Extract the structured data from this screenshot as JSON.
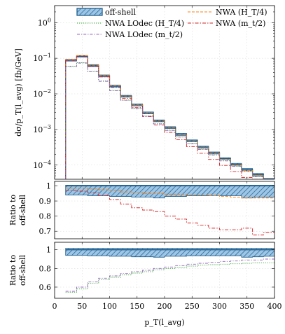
{
  "chart_data": {
    "type": "line",
    "x_edges": [
      20,
      40,
      60,
      80,
      100,
      120,
      140,
      160,
      180,
      200,
      220,
      240,
      260,
      280,
      300,
      320,
      340,
      360,
      380,
      400
    ],
    "xlabel": "p_T(l_avg)",
    "xlim": [
      0,
      400
    ],
    "x_ticks": [
      0,
      50,
      100,
      150,
      200,
      250,
      300,
      350,
      400
    ],
    "legend": {
      "placement": "top",
      "entries": [
        {
          "key": "offshell",
          "label": "off-shell"
        },
        {
          "key": "nwa_ht4",
          "label": "NWA (H_T/4)"
        },
        {
          "key": "nwa_lodec_ht4",
          "label": "NWA LOdec (H_T/4)"
        },
        {
          "key": "nwa_mt2",
          "label": "NWA (m_t/2)"
        },
        {
          "key": "nwa_lodec_mt2",
          "label": "NWA LOdec (m_t/2)"
        }
      ]
    },
    "colors": {
      "offshell_line": "#1f5d8c",
      "offshell_fill": "#9dc6e6",
      "nwa_ht4": "#ff7f0e",
      "nwa_lodec_ht4": "#2ca02c",
      "nwa_mt2": "#d62728",
      "nwa_lodec_mt2": "#9467bd"
    },
    "panels": [
      {
        "id": "main",
        "ylabel": "dσ/p_T(l_avg) [fb/GeV]",
        "yscale": "log",
        "ylim": [
          4e-05,
          3
        ],
        "y_ticks": [
          {
            "v": 0.0001,
            "base": "10",
            "exp": "−4"
          },
          {
            "v": 0.001,
            "base": "10",
            "exp": "−3"
          },
          {
            "v": 0.01,
            "base": "10",
            "exp": "−2"
          },
          {
            "v": 0.1,
            "base": "10",
            "exp": "−1"
          },
          {
            "v": 1,
            "base": "10",
            "exp": "0"
          }
        ],
        "series": [
          {
            "key": "offshell",
            "band": true,
            "values": [
              0.088,
              0.113,
              0.062,
              0.032,
              0.0165,
              0.0086,
              0.0049,
              0.0029,
              0.00175,
              0.00113,
              0.00073,
              0.00048,
              0.00032,
              0.00022,
              0.000152,
              0.000105,
              7.5e-05,
              5.4e-05,
              3.9e-05
            ],
            "band_lo": [
              0.083,
              0.107,
              0.058,
              0.03,
              0.0156,
              0.0081,
              0.0046,
              0.00275,
              0.00165,
              0.00106,
              0.00068,
              0.00045,
              0.0003,
              0.000206,
              0.000143,
              9.8e-05,
              7e-05,
              5e-05,
              3.6e-05
            ],
            "band_hi": [
              0.093,
              0.119,
              0.066,
              0.034,
              0.0175,
              0.0091,
              0.0052,
              0.0031,
              0.00185,
              0.0012,
              0.00078,
              0.00051,
              0.00034,
              0.000234,
              0.000161,
              0.000112,
              8e-05,
              5.8e-05,
              4.2e-05
            ]
          },
          {
            "key": "nwa_ht4",
            "values": [
              0.092,
              0.118,
              0.064,
              0.033,
              0.0168,
              0.0087,
              0.0049,
              0.0029,
              0.00172,
              0.0011,
              0.00071,
              0.00046,
              0.000305,
              0.00021,
              0.000143,
              9.9e-05,
              7e-05,
              5.1e-05,
              3.6e-05
            ]
          },
          {
            "key": "nwa_mt2",
            "values": [
              0.087,
              0.11,
              0.059,
              0.03,
              0.015,
              0.0075,
              0.0041,
              0.0023,
              0.00133,
              0.00083,
              0.00052,
              0.00033,
              0.000214,
              0.000144,
              9.8e-05,
              6.6e-05,
              4.5e-05,
              3.2e-05,
              2.3e-05
            ]
          },
          {
            "key": "nwa_lodec_ht4",
            "values": [
              0.06,
              0.075,
              0.043,
              0.023,
              0.0125,
              0.0067,
              0.0039,
              0.0024,
              0.00145,
              0.00095,
              0.00062,
              0.00041,
              0.00028,
              0.000193,
              0.000133,
              9.3e-05,
              6.7e-05,
              4.8e-05,
              3.4e-05
            ]
          },
          {
            "key": "nwa_lodec_mt2",
            "values": [
              0.058,
              0.073,
              0.042,
              0.0225,
              0.0123,
              0.0066,
              0.0038,
              0.00235,
              0.00143,
              0.00094,
              0.00061,
              0.0004,
              0.000275,
              0.00019,
              0.000131,
              9.2e-05,
              6.6e-05,
              4.7e-05,
              3.4e-05
            ]
          }
        ]
      },
      {
        "id": "ratio1",
        "ylabel_lines": [
          "Ratio to",
          "off-shell"
        ],
        "yscale": "linear",
        "ylim": [
          0.65,
          1.03
        ],
        "y_ticks": [
          {
            "v": 0.7,
            "label": "0.7"
          },
          {
            "v": 0.8,
            "label": "0.8"
          },
          {
            "v": 0.9,
            "label": "0.9"
          },
          {
            "v": 1,
            "label": "1"
          }
        ],
        "series": [
          {
            "key": "offshell",
            "band": true,
            "values": [
              1,
              1,
              1,
              1,
              1,
              1,
              1,
              1,
              1,
              1,
              1,
              1,
              1,
              1,
              1,
              1,
              1,
              1,
              1
            ],
            "band_lo": [
              0.94,
              0.94,
              0.935,
              0.935,
              0.93,
              0.93,
              0.925,
              0.925,
              0.92,
              0.93,
              0.93,
              0.935,
              0.935,
              0.935,
              0.935,
              0.935,
              0.92,
              0.925,
              0.925
            ],
            "band_hi": [
              1.005,
              1.005,
              1.005,
              1.005,
              1.005,
              1.005,
              1.005,
              1.005,
              1.005,
              1.005,
              1.005,
              1.005,
              1.005,
              1.005,
              1.005,
              1.005,
              1.005,
              1.005,
              1.005
            ]
          },
          {
            "key": "nwa_ht4",
            "values": [
              0.985,
              0.985,
              0.98,
              0.975,
              0.97,
              0.96,
              0.955,
              0.95,
              0.95,
              0.945,
              0.945,
              0.94,
              0.94,
              0.935,
              0.93,
              0.925,
              0.92,
              0.92,
              0.92
            ]
          },
          {
            "key": "nwa_mt2",
            "values": [
              0.97,
              0.965,
              0.955,
              0.935,
              0.91,
              0.88,
              0.855,
              0.84,
              0.83,
              0.8,
              0.78,
              0.755,
              0.74,
              0.72,
              0.71,
              0.71,
              0.72,
              0.675,
              0.69
            ]
          }
        ]
      },
      {
        "id": "ratio2",
        "ylabel_lines": [
          "Ratio to",
          "off-shell"
        ],
        "yscale": "linear",
        "ylim": [
          0.48,
          1.08
        ],
        "y_ticks": [
          {
            "v": 0.6,
            "label": "0.6"
          },
          {
            "v": 0.8,
            "label": "0.8"
          },
          {
            "v": 1,
            "label": "1"
          }
        ],
        "series": [
          {
            "key": "offshell",
            "band": true,
            "values": [
              1,
              1,
              1,
              1,
              1,
              1,
              1,
              1,
              1,
              1,
              1,
              1,
              1,
              1,
              1,
              1,
              1,
              1,
              1
            ],
            "band_lo": [
              0.94,
              0.94,
              0.935,
              0.935,
              0.93,
              0.93,
              0.925,
              0.925,
              0.92,
              0.93,
              0.93,
              0.935,
              0.935,
              0.935,
              0.935,
              0.935,
              0.92,
              0.925,
              0.93
            ],
            "band_hi": [
              1.015,
              1.015,
              1.015,
              1.015,
              1.015,
              1.015,
              1.015,
              1.015,
              1.015,
              1.015,
              1.015,
              1.015,
              1.015,
              1.015,
              1.015,
              1.015,
              1.015,
              1.015,
              1.015
            ]
          },
          {
            "key": "nwa_lodec_ht4",
            "values": [
              0.545,
              0.58,
              0.64,
              0.68,
              0.705,
              0.73,
              0.75,
              0.765,
              0.785,
              0.8,
              0.81,
              0.825,
              0.835,
              0.84,
              0.845,
              0.85,
              0.855,
              0.86,
              0.86
            ]
          },
          {
            "key": "nwa_lodec_mt2",
            "values": [
              0.555,
              0.6,
              0.655,
              0.695,
              0.72,
              0.745,
              0.765,
              0.78,
              0.8,
              0.815,
              0.83,
              0.845,
              0.855,
              0.865,
              0.875,
              0.88,
              0.89,
              0.89,
              0.9
            ]
          }
        ]
      }
    ]
  }
}
